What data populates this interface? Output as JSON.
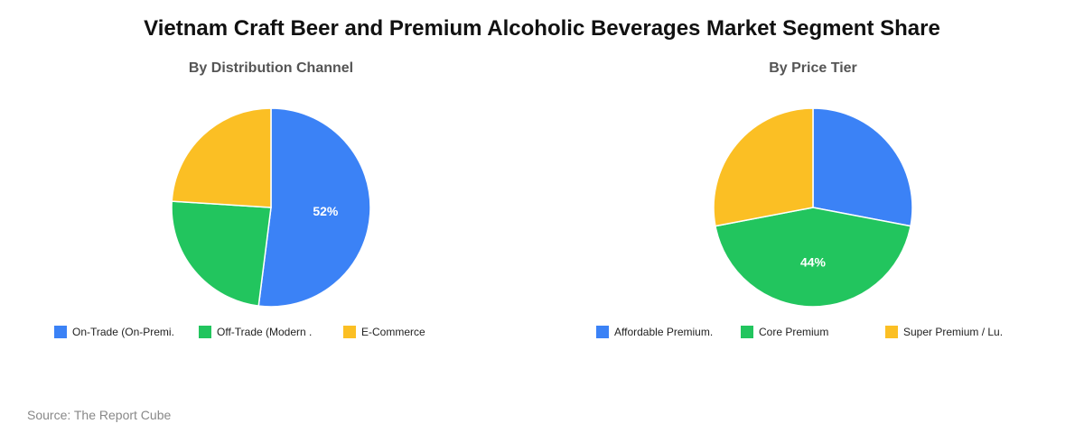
{
  "title": "Vietnam Craft Beer and Premium Alcoholic Beverages Market Segment Share",
  "source": "Source: The Report Cube",
  "colors": {
    "blue": "#3b82f6",
    "green": "#22c55e",
    "yellow": "#fbbf24"
  },
  "chart_data": [
    {
      "type": "pie",
      "title": "By Distribution Channel",
      "start_angle_deg": 0,
      "direction": "clockwise",
      "categories": [
        "On-Trade (On-Premi.",
        "Off-Trade (Modern .",
        "E-Commerce"
      ],
      "values": [
        52,
        24,
        24
      ],
      "colors": [
        "#3b82f6",
        "#22c55e",
        "#fbbf24"
      ],
      "data_labels": [
        "52%",
        "",
        ""
      ],
      "legend_position": "bottom"
    },
    {
      "type": "pie",
      "title": "By Price Tier",
      "start_angle_deg": 0,
      "direction": "clockwise",
      "categories": [
        "Affordable Premium.",
        "Core Premium",
        "Super Premium / Lu."
      ],
      "values": [
        28,
        44,
        28
      ],
      "colors": [
        "#3b82f6",
        "#22c55e",
        "#fbbf24"
      ],
      "data_labels": [
        "",
        "44%",
        ""
      ],
      "legend_position": "bottom"
    }
  ]
}
